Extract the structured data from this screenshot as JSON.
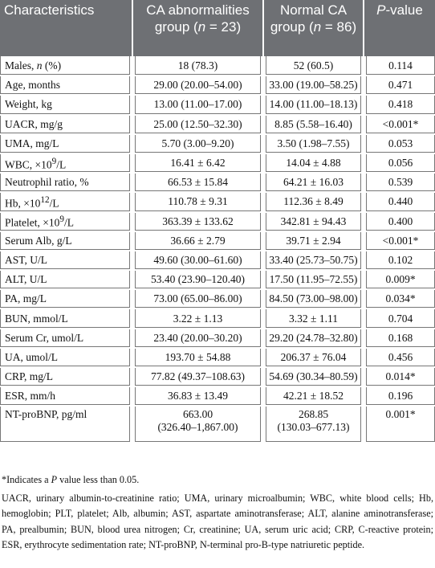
{
  "table": {
    "headers": [
      {
        "pre": "Characteristics",
        "italic": "",
        "post": ""
      },
      {
        "pre": "CA abnormalities group (",
        "italic": "n",
        "post": " = 23)"
      },
      {
        "pre": "Normal CA group (",
        "italic": "n",
        "post": " = 86)"
      },
      {
        "pre": "",
        "italic": "P",
        "post": "-value"
      }
    ],
    "rows": [
      {
        "label_pre": "Males, ",
        "label_italic": "n",
        "label_post": " (%)",
        "ca": "18 (78.3)",
        "normal": "52 (60.5)",
        "p": "0.114"
      },
      {
        "label_pre": "Age, months",
        "ca": "29.00 (20.00–54.00)",
        "normal": "33.00 (19.00–58.25)",
        "p": "0.471"
      },
      {
        "label_pre": "Weight, kg",
        "ca": "13.00 (11.00–17.00)",
        "normal": "14.00 (11.00–18.13)",
        "p": "0.418"
      },
      {
        "label_pre": "UACR, mg/g",
        "ca": "25.00 (12.50–32.30)",
        "normal": "8.85 (5.58–16.40)",
        "p": "<0.001*"
      },
      {
        "label_pre": "UMA, mg/L",
        "ca": "5.70 (3.00–9.20)",
        "normal": "3.50 (1.98–7.55)",
        "p": "0.053"
      },
      {
        "label_pre": "WBC, ×10",
        "label_sup": "9",
        "label_post": "/L",
        "ca": "16.41 ± 6.42",
        "normal": "14.04 ± 4.88",
        "p": "0.056"
      },
      {
        "label_pre": "Neutrophil ratio, %",
        "ca": "66.53 ± 15.84",
        "normal": "64.21 ± 16.03",
        "p": "0.539"
      },
      {
        "label_pre": "Hb, ×10",
        "label_sup": "12",
        "label_post": "/L",
        "ca": "110.78 ± 9.31",
        "normal": "112.36 ± 8.49",
        "p": "0.440"
      },
      {
        "label_pre": "Platelet, ×10",
        "label_sup": "9",
        "label_post": "/L",
        "ca": "363.39 ± 133.62",
        "normal": "342.81 ± 94.43",
        "p": "0.400"
      },
      {
        "label_pre": "Serum Alb, g/L",
        "ca": "36.66 ± 2.79",
        "normal": "39.71 ± 2.94",
        "p": "<0.001*"
      },
      {
        "label_pre": "AST, U/L",
        "ca": "49.60 (30.00–61.60)",
        "normal": "33.40 (25.73–50.75)",
        "p": "0.102"
      },
      {
        "label_pre": "ALT, U/L",
        "ca": "53.40 (23.90–120.40)",
        "normal": "17.50 (11.95–72.55)",
        "p": "0.009*"
      },
      {
        "label_pre": "PA, mg/L",
        "ca": "73.00 (65.00–86.00)",
        "normal": "84.50 (73.00–98.00)",
        "p": "0.034*"
      },
      {
        "label_pre": "BUN, mmol/L",
        "ca": "3.22 ± 1.13",
        "normal": "3.32 ± 1.11",
        "p": "0.704"
      },
      {
        "label_pre": "Serum Cr, umol/L",
        "ca": "23.40 (20.00–30.20)",
        "normal": "29.20 (24.78–32.80)",
        "p": "0.168"
      },
      {
        "label_pre": "UA, umol/L",
        "ca": "193.70 ± 54.88",
        "normal": "206.37 ± 76.04",
        "p": "0.456"
      },
      {
        "label_pre": "CRP, mg/L",
        "ca": "77.82 (49.37–108.63)",
        "normal": "54.69 (30.34–80.59)",
        "p": "0.014*"
      },
      {
        "label_pre": "ESR, mm/h",
        "ca": "36.83 ± 13.49",
        "normal": "42.21 ± 18.52",
        "p": "0.196"
      },
      {
        "label_pre": "NT-proBNP, pg/ml",
        "ca": "663.00",
        "ca_line2": "(326.40–1,867.00)",
        "normal": "268.85",
        "normal_line2": "(130.03–677.13)",
        "p": "0.001*"
      }
    ]
  },
  "footnotes": {
    "star_pre": "*Indicates a ",
    "star_italic": "P",
    "star_post": " value less than 0.05.",
    "abbreviations": "UACR, urinary albumin-to-creatinine ratio; UMA, urinary microalbumin; WBC, white blood cells; Hb, hemoglobin; PLT, platelet; Alb, albumin; AST, aspartate aminotransferase; ALT, alanine aminotransferase; PA, prealbumin; BUN, blood urea nitrogen; Cr, creatinine; UA, serum uric acid; CRP, C-reactive protein; ESR, erythrocyte sedimentation rate; NT-proBNP, N-terminal pro-B-type natriuretic peptide."
  }
}
